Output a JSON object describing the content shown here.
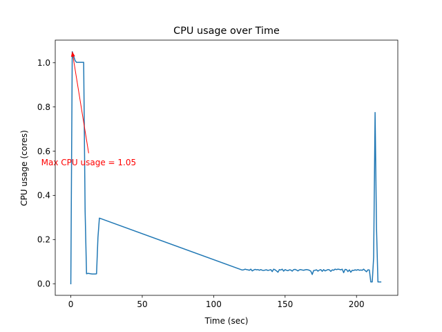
{
  "chart_data": {
    "type": "line",
    "title": "CPU usage over Time",
    "xlabel": "Time (sec)",
    "ylabel": "CPU usage (cores)",
    "xlim": [
      -10.9,
      228.9
    ],
    "ylim": [
      -0.0525,
      1.1025
    ],
    "xticks": [
      0,
      50,
      100,
      150,
      200
    ],
    "yticks": [
      0.0,
      0.2,
      0.4,
      0.6,
      0.8,
      1.0
    ],
    "xtick_labels": [
      "0",
      "50",
      "100",
      "150",
      "200"
    ],
    "ytick_labels": [
      "0.0",
      "0.2",
      "0.4",
      "0.6",
      "0.8",
      "1.0"
    ],
    "grid": false,
    "series": [
      {
        "color": "#1f77b4",
        "x": [
          0,
          1,
          2,
          3,
          4,
          5,
          6,
          7,
          8,
          9,
          10,
          11,
          12,
          13,
          14,
          15,
          16,
          17,
          18,
          19,
          20,
          120,
          121,
          122,
          123,
          124,
          125,
          126,
          127,
          128,
          129,
          130,
          131,
          132,
          133,
          134,
          135,
          136,
          137,
          138,
          139,
          140,
          141,
          142,
          143,
          144,
          145,
          146,
          147,
          148,
          149,
          150,
          151,
          152,
          153,
          154,
          155,
          156,
          157,
          158,
          159,
          160,
          161,
          162,
          163,
          164,
          165,
          166,
          167,
          168,
          169,
          170,
          171,
          172,
          173,
          174,
          175,
          176,
          177,
          178,
          179,
          180,
          181,
          182,
          183,
          184,
          185,
          186,
          187,
          188,
          189,
          190,
          191,
          192,
          193,
          194,
          195,
          196,
          197,
          198,
          199,
          200,
          201,
          202,
          203,
          204,
          205,
          206,
          207,
          208,
          209,
          210,
          211,
          212,
          213,
          214,
          215,
          216,
          217
        ],
        "y": [
          0.0,
          1.05,
          1.03,
          1.01,
          1.002,
          1.002,
          1.002,
          1.002,
          1.002,
          1.002,
          0.33,
          0.045,
          0.047,
          0.046,
          0.045,
          0.044,
          0.044,
          0.044,
          0.045,
          0.21,
          0.297,
          0.062,
          0.063,
          0.066,
          0.064,
          0.063,
          0.061,
          0.066,
          0.058,
          0.062,
          0.065,
          0.063,
          0.064,
          0.061,
          0.064,
          0.061,
          0.06,
          0.062,
          0.063,
          0.06,
          0.062,
          0.064,
          0.055,
          0.066,
          0.063,
          0.058,
          0.052,
          0.064,
          0.062,
          0.066,
          0.057,
          0.064,
          0.061,
          0.059,
          0.063,
          0.062,
          0.057,
          0.064,
          0.065,
          0.062,
          0.058,
          0.063,
          0.064,
          0.062,
          0.061,
          0.063,
          0.064,
          0.063,
          0.061,
          0.057,
          0.042,
          0.06,
          0.061,
          0.063,
          0.057,
          0.062,
          0.064,
          0.056,
          0.064,
          0.058,
          0.061,
          0.064,
          0.063,
          0.056,
          0.063,
          0.061,
          0.066,
          0.064,
          0.066,
          0.065,
          0.063,
          0.066,
          0.05,
          0.065,
          0.064,
          0.055,
          0.063,
          0.052,
          0.061,
          0.06,
          0.063,
          0.061,
          0.064,
          0.061,
          0.062,
          0.061,
          0.066,
          0.06,
          0.054,
          0.063,
          0.062,
          0.008,
          0.008,
          0.12,
          0.775,
          0.25,
          0.008,
          0.008,
          0.008
        ]
      }
    ],
    "annotation": {
      "text": "Max CPU usage = 1.05",
      "color": "#ff0000",
      "point": [
        1,
        1.05
      ],
      "text_position": [
        12.5,
        0.55
      ]
    }
  }
}
